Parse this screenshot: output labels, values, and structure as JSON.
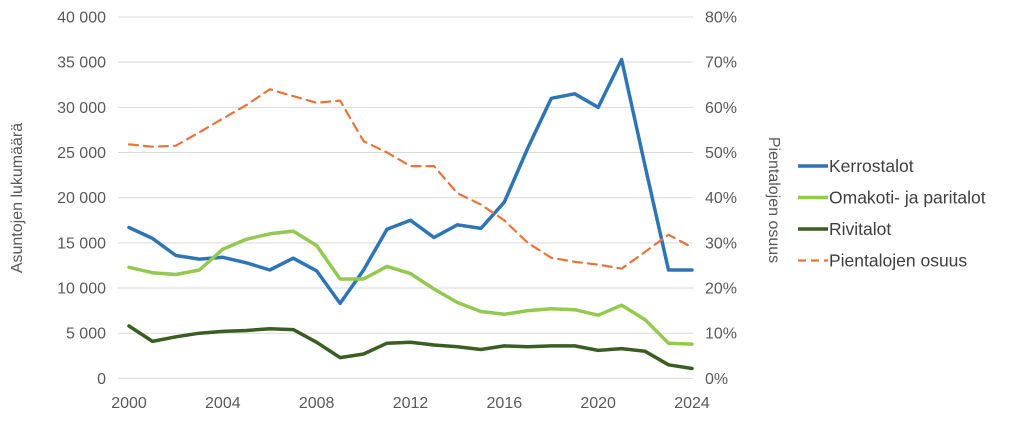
{
  "chart_data": {
    "type": "line",
    "title": "",
    "grid": true,
    "legend_position": "right",
    "x": [
      2000,
      2001,
      2002,
      2003,
      2004,
      2005,
      2006,
      2007,
      2008,
      2009,
      2010,
      2011,
      2012,
      2013,
      2014,
      2015,
      2016,
      2017,
      2018,
      2019,
      2020,
      2021,
      2022,
      2023,
      2024
    ],
    "x_tick_labels": [
      "2000",
      "2004",
      "2008",
      "2012",
      "2016",
      "2020",
      "2024"
    ],
    "left_axis": {
      "label": "Asuntojen lukumäärä",
      "min": 0,
      "max": 40000,
      "step": 5000,
      "tick_labels": [
        "0",
        "5 000",
        "10 000",
        "15 000",
        "20 000",
        "25 000",
        "30 000",
        "35 000",
        "40 000"
      ]
    },
    "right_axis": {
      "label": "Pientalojen osuus",
      "min": 0,
      "max": 80,
      "step": 10,
      "tick_labels": [
        "0%",
        "10%",
        "20%",
        "30%",
        "40%",
        "50%",
        "60%",
        "70%",
        "80%"
      ]
    },
    "series": [
      {
        "name": "Kerrostalot",
        "axis": "left",
        "style": "solid",
        "color": "#2E75B6",
        "values": [
          16700,
          15500,
          13600,
          13200,
          13400,
          12800,
          12000,
          13300,
          11900,
          8300,
          12000,
          16500,
          17500,
          15600,
          17000,
          16600,
          19500,
          25500,
          31000,
          31500,
          30000,
          35300,
          23500,
          12000,
          12000
        ]
      },
      {
        "name": "Omakoti- ja paritalot",
        "axis": "left",
        "style": "solid",
        "color": "#92C94E",
        "values": [
          12300,
          11700,
          11500,
          12000,
          14300,
          15400,
          16000,
          16300,
          14700,
          11000,
          11000,
          12400,
          11600,
          9900,
          8400,
          7400,
          7100,
          7500,
          7700,
          7600,
          7000,
          8100,
          6500,
          3900,
          3800
        ]
      },
      {
        "name": "Rivitalot",
        "axis": "left",
        "style": "solid",
        "color": "#3A5E22",
        "values": [
          5800,
          4100,
          4600,
          5000,
          5200,
          5300,
          5500,
          5400,
          4000,
          2300,
          2700,
          3900,
          4000,
          3700,
          3500,
          3200,
          3600,
          3500,
          3600,
          3600,
          3100,
          3300,
          3000,
          1500,
          1100
        ]
      },
      {
        "name": "Pientalojen osuus",
        "axis": "right",
        "style": "dashed",
        "color": "#E8743B",
        "values": [
          51.8,
          51.3,
          51.5,
          54.5,
          57.5,
          60.5,
          64.0,
          62.5,
          61.0,
          61.5,
          52.5,
          50.0,
          47.0,
          47.0,
          41.0,
          38.5,
          35.0,
          30.0,
          26.7,
          25.8,
          25.2,
          24.3,
          28.0,
          31.8,
          29.0
        ]
      }
    ]
  }
}
